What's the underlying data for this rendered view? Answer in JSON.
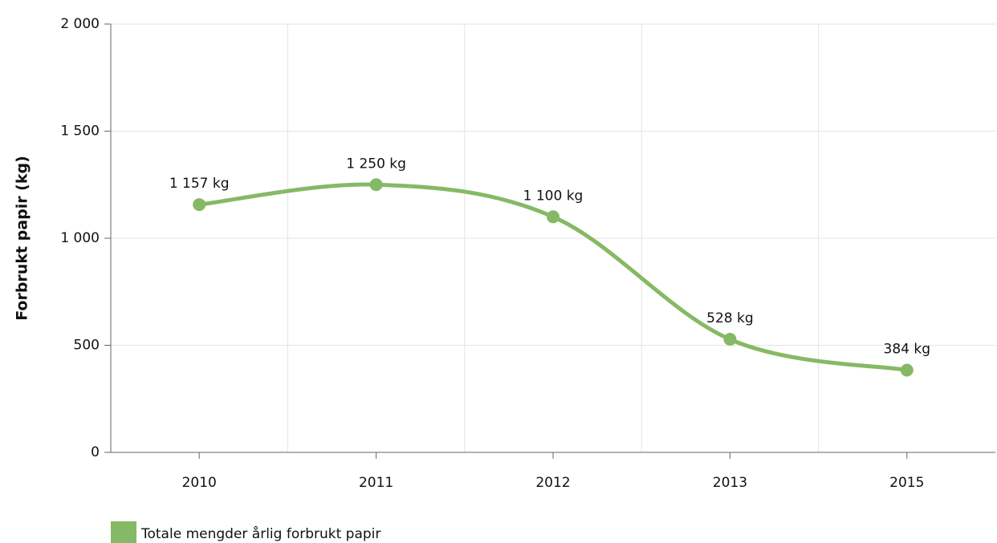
{
  "chart_data": {
    "type": "line",
    "y_label": "Forbrukt papir (kg)",
    "categories": [
      "2010",
      "2011",
      "2012",
      "2013",
      "2015"
    ],
    "series": [
      {
        "name": "Totale mengder årlig forbrukt papir",
        "color": "#86b965",
        "values": [
          1157,
          1250,
          1100,
          528,
          384
        ],
        "value_labels": [
          "1 157 kg",
          "1 250 kg",
          "1 100 kg",
          "528 kg",
          "384 kg"
        ]
      }
    ],
    "ylim": [
      0,
      2000
    ],
    "yticks": [
      0,
      {
        "value": 500,
        "label": "500"
      },
      {
        "value": 1000,
        "label": "1 000"
      },
      {
        "value": 1500,
        "label": "1 500"
      },
      {
        "value": 2000,
        "label": "2 000"
      }
    ],
    "grid": true
  }
}
